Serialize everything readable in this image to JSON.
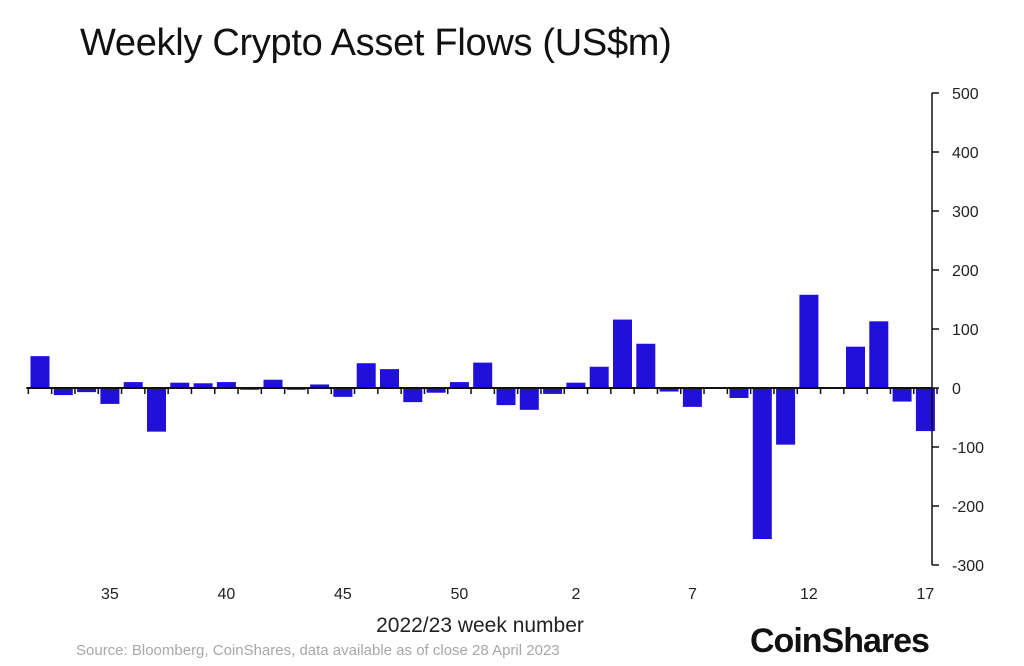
{
  "chart_data": {
    "type": "bar",
    "title": "Weekly Crypto Asset Flows (US$m)",
    "xlabel": "2022/23 week number",
    "ylabel": "",
    "ylim": [
      -300,
      500
    ],
    "yticks": [
      500,
      400,
      300,
      200,
      100,
      0,
      -100,
      -200,
      -300
    ],
    "xtick_labels": [
      "35",
      "40",
      "45",
      "50",
      "2",
      "7",
      "12",
      "17"
    ],
    "categories": [
      "32",
      "33",
      "34",
      "35",
      "36",
      "37",
      "38",
      "39",
      "40",
      "41",
      "42",
      "43",
      "44",
      "45",
      "46",
      "47",
      "48",
      "49",
      "50",
      "51",
      "52",
      "53",
      "1",
      "2",
      "3",
      "4",
      "5",
      "6",
      "7",
      "8",
      "9",
      "10",
      "11",
      "12",
      "13",
      "14",
      "15",
      "16",
      "17"
    ],
    "values": [
      54,
      -12,
      -7,
      -27,
      10,
      -74,
      9,
      8,
      10,
      -3,
      14,
      -3,
      6,
      -15,
      42,
      32,
      -24,
      -8,
      10,
      43,
      -29,
      -37,
      -10,
      9,
      36,
      116,
      75,
      -6,
      -32,
      -1,
      -17,
      -256,
      -96,
      158,
      1,
      70,
      113,
      -23,
      -73
    ],
    "bar_color": "#2010d8",
    "grid": false,
    "y_axis_side": "right"
  },
  "source": "Source: Bloomberg, CoinShares, data available as of close 28 April 2023",
  "logo": "CoinShares"
}
